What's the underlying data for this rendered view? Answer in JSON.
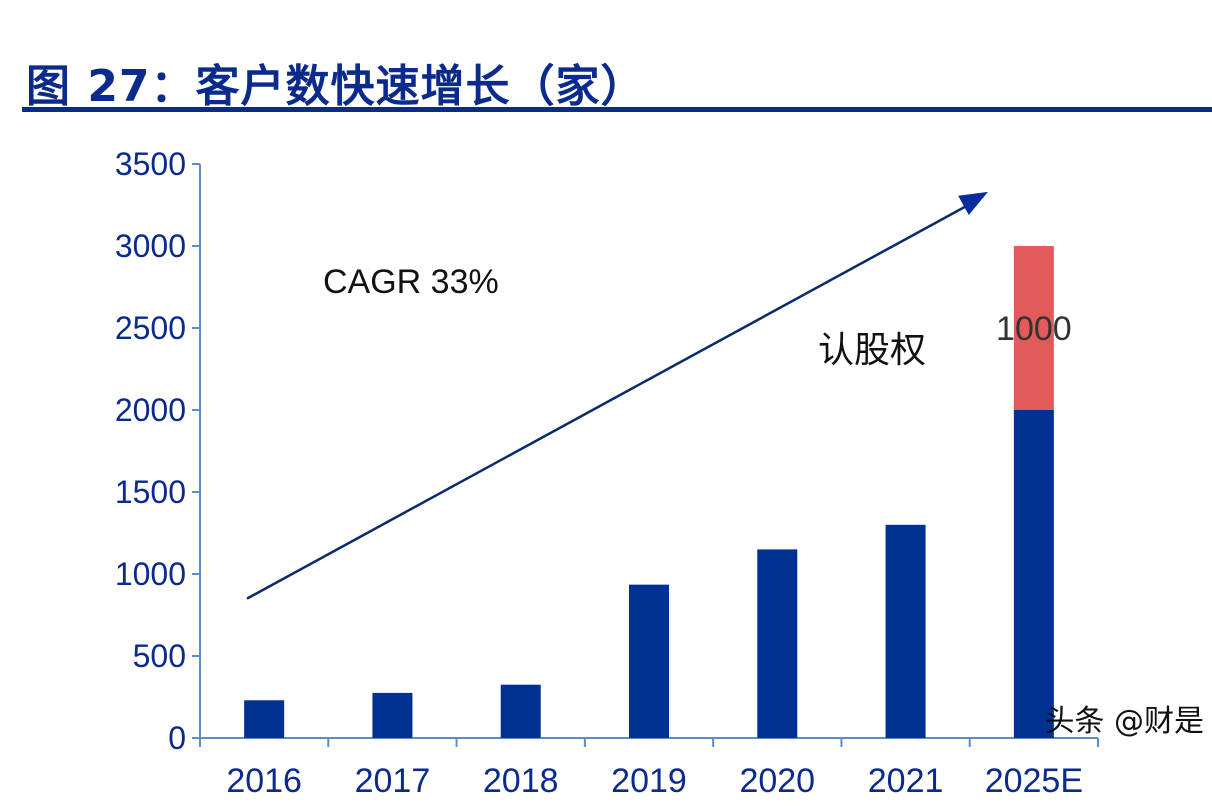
{
  "header": {
    "title": "图 27：客户数快速增长（家）"
  },
  "watermark": "头条 @财是",
  "colors": {
    "title": "#0a2a8c",
    "bar_base": "#003192",
    "bar_option": "#e35a5a",
    "axis": "#5b8ec9",
    "arrow": "#0a2a6e"
  },
  "chart_data": {
    "type": "bar",
    "stacked": true,
    "title": "图 27：客户数快速增长（家）",
    "xlabel": "",
    "ylabel": "",
    "ylim": [
      0,
      3500
    ],
    "yticks": [
      0,
      500,
      1000,
      1500,
      2000,
      2500,
      3000,
      3500
    ],
    "categories": [
      "2016",
      "2017",
      "2018",
      "2019",
      "2020",
      "2021",
      "2025E"
    ],
    "series": [
      {
        "name": "客户数",
        "color": "#003192",
        "values": [
          230,
          275,
          325,
          935,
          1150,
          1300,
          2000
        ]
      },
      {
        "name": "认股权",
        "color": "#e35a5a",
        "values": [
          0,
          0,
          0,
          0,
          0,
          0,
          1000
        ]
      }
    ],
    "data_labels": [
      {
        "category": "2025E",
        "series": "认股权",
        "text": "1000"
      }
    ],
    "annotations": [
      {
        "text": "CAGR 33%",
        "type": "text"
      },
      {
        "text": "认股权",
        "type": "text"
      },
      {
        "type": "arrow",
        "from": {
          "category": "2016",
          "value": 850
        },
        "to": {
          "category": "2025E",
          "value": 3330
        }
      }
    ],
    "grid": false,
    "legend": "none"
  }
}
